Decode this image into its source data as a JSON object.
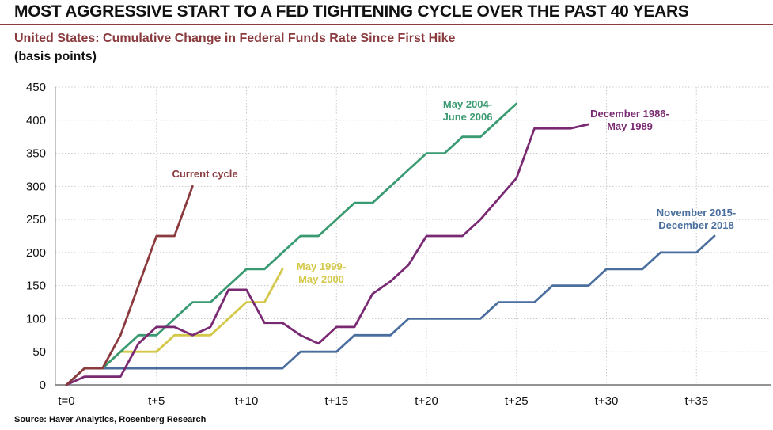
{
  "header": {
    "title": "MOST AGGRESSIVE START TO A FED TIGHTENING CYCLE OVER THE PAST 40 YEARS",
    "subtitle": "United States: Cumulative Change in Federal Funds Rate Since First Hike",
    "units": "(basis points)"
  },
  "footer": {
    "source": "Source: Haver Analytics, Rosenberg Research"
  },
  "chart_data": {
    "type": "line",
    "title": "United States: Cumulative Change in Federal Funds Rate Since First Hike",
    "ylabel": "(basis points)",
    "xlim": [
      0,
      38
    ],
    "ylim": [
      0,
      450
    ],
    "yticks": [
      0,
      50,
      100,
      150,
      200,
      250,
      300,
      350,
      400,
      450
    ],
    "xticks": [
      {
        "value": 0,
        "label": "t=0"
      },
      {
        "value": 5,
        "label": "t+5"
      },
      {
        "value": 10,
        "label": "t+10"
      },
      {
        "value": 15,
        "label": "t+15"
      },
      {
        "value": 20,
        "label": "t+20"
      },
      {
        "value": 25,
        "label": "t+25"
      },
      {
        "value": 30,
        "label": "t+30"
      },
      {
        "value": 35,
        "label": "t+35"
      }
    ],
    "grid": "horizontal-and-vertical-dotted",
    "legend": "inline-labels",
    "series": [
      {
        "name": "Current cycle",
        "color": "#8b3a3e",
        "label_lines": [
          "Current cycle"
        ],
        "points": [
          [
            0,
            0
          ],
          [
            1,
            25
          ],
          [
            2,
            25
          ],
          [
            3,
            75
          ],
          [
            4,
            150
          ],
          [
            5,
            225
          ],
          [
            6,
            225
          ],
          [
            7,
            300
          ]
        ]
      },
      {
        "name": "May 2004-June 2006",
        "color": "#3a9a72",
        "label_lines": [
          "May 2004-",
          "June 2006"
        ],
        "points": [
          [
            0,
            0
          ],
          [
            1,
            25
          ],
          [
            2,
            25
          ],
          [
            3,
            50
          ],
          [
            4,
            75
          ],
          [
            5,
            75
          ],
          [
            6,
            100
          ],
          [
            7,
            125
          ],
          [
            8,
            125
          ],
          [
            9,
            150
          ],
          [
            10,
            175
          ],
          [
            11,
            175
          ],
          [
            12,
            200
          ],
          [
            13,
            225
          ],
          [
            14,
            225
          ],
          [
            15,
            250
          ],
          [
            16,
            275
          ],
          [
            17,
            275
          ],
          [
            18,
            300
          ],
          [
            19,
            325
          ],
          [
            20,
            350
          ],
          [
            21,
            350
          ],
          [
            22,
            375
          ],
          [
            23,
            375
          ],
          [
            24,
            400
          ],
          [
            25,
            425
          ]
        ]
      },
      {
        "name": "May 1999-May 2000",
        "color": "#d4c84a",
        "label_lines": [
          "May 1999-",
          "May 2000"
        ],
        "points": [
          [
            0,
            0
          ],
          [
            1,
            25
          ],
          [
            2,
            25
          ],
          [
            3,
            50
          ],
          [
            4,
            50
          ],
          [
            5,
            50
          ],
          [
            6,
            75
          ],
          [
            7,
            75
          ],
          [
            8,
            75
          ],
          [
            9,
            100
          ],
          [
            10,
            125
          ],
          [
            11,
            125
          ],
          [
            12,
            175
          ]
        ]
      },
      {
        "name": "December 1986-May 1989",
        "color": "#7a2a72",
        "label_lines": [
          "December 1986-",
          "May 1989"
        ],
        "points": [
          [
            0,
            0
          ],
          [
            1,
            12.5
          ],
          [
            2,
            12.5
          ],
          [
            3,
            12.5
          ],
          [
            4,
            62.5
          ],
          [
            5,
            87.5
          ],
          [
            6,
            87.5
          ],
          [
            7,
            75
          ],
          [
            8,
            87.5
          ],
          [
            9,
            143.75
          ],
          [
            10,
            143.75
          ],
          [
            11,
            93.75
          ],
          [
            12,
            93.75
          ],
          [
            13,
            75
          ],
          [
            14,
            62.5
          ],
          [
            15,
            87.5
          ],
          [
            16,
            87.5
          ],
          [
            17,
            137.5
          ],
          [
            18,
            156.25
          ],
          [
            19,
            181.25
          ],
          [
            20,
            225
          ],
          [
            21,
            225
          ],
          [
            22,
            225
          ],
          [
            23,
            250
          ],
          [
            24,
            281.25
          ],
          [
            25,
            312.5
          ],
          [
            26,
            387.5
          ],
          [
            27,
            387.5
          ],
          [
            28,
            387.5
          ],
          [
            29,
            393.75
          ]
        ]
      },
      {
        "name": "November 2015-December 2018",
        "color": "#4a6f9e",
        "label_lines": [
          "November 2015-",
          "December 2018"
        ],
        "points": [
          [
            0,
            0
          ],
          [
            1,
            25
          ],
          [
            2,
            25
          ],
          [
            3,
            25
          ],
          [
            4,
            25
          ],
          [
            5,
            25
          ],
          [
            6,
            25
          ],
          [
            7,
            25
          ],
          [
            8,
            25
          ],
          [
            9,
            25
          ],
          [
            10,
            25
          ],
          [
            11,
            25
          ],
          [
            12,
            25
          ],
          [
            13,
            50
          ],
          [
            14,
            50
          ],
          [
            15,
            50
          ],
          [
            16,
            75
          ],
          [
            17,
            75
          ],
          [
            18,
            75
          ],
          [
            19,
            100
          ],
          [
            20,
            100
          ],
          [
            21,
            100
          ],
          [
            22,
            100
          ],
          [
            23,
            100
          ],
          [
            24,
            125
          ],
          [
            25,
            125
          ],
          [
            26,
            125
          ],
          [
            27,
            150
          ],
          [
            28,
            150
          ],
          [
            29,
            150
          ],
          [
            30,
            175
          ],
          [
            31,
            175
          ],
          [
            32,
            175
          ],
          [
            33,
            200
          ],
          [
            34,
            200
          ],
          [
            35,
            200
          ],
          [
            36,
            225
          ]
        ]
      }
    ]
  }
}
